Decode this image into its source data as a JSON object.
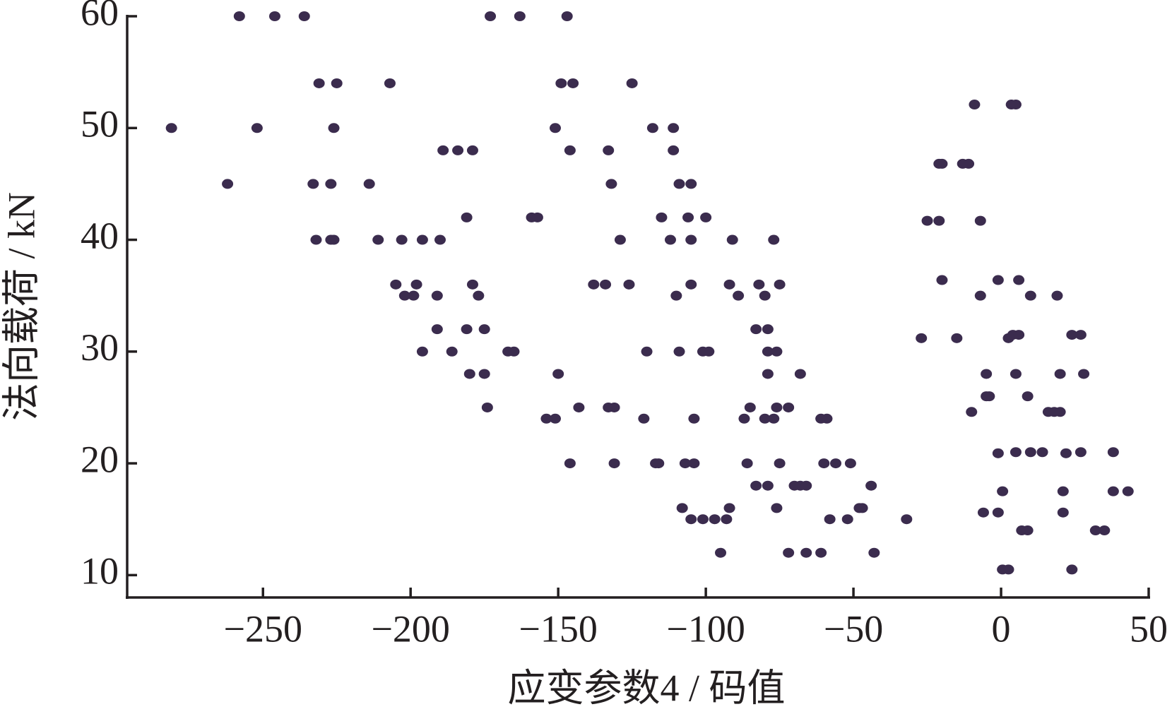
{
  "chart_data": {
    "type": "scatter",
    "x_label": "应变参数4 / 码值",
    "y_label": "法向载荷 / kN",
    "color": "#3b2c4e",
    "xlim": [
      -296,
      50
    ],
    "ylim": [
      8,
      60
    ],
    "xticks": [
      {
        "value": -250,
        "label": "−250"
      },
      {
        "value": -200,
        "label": "−200"
      },
      {
        "value": -150,
        "label": "−150"
      },
      {
        "value": -100,
        "label": "−100"
      },
      {
        "value": -50,
        "label": "−50"
      },
      0,
      50
    ],
    "yticks": [
      10,
      20,
      30,
      40,
      50,
      60
    ],
    "x": [
      -281,
      -262,
      -258,
      -252,
      -246,
      -236,
      -233,
      -232,
      -231,
      -227,
      -227,
      -226,
      -226,
      -225,
      -214,
      -211,
      -207,
      -205,
      -203,
      -202,
      -199,
      -198,
      -196,
      -196,
      -191,
      -191,
      -190,
      -189,
      -186,
      -184,
      -181,
      -181,
      -180,
      -179,
      -179,
      -177,
      -175,
      -175,
      -174,
      -173,
      -167,
      -165,
      -163,
      -159,
      -157,
      -154,
      -151,
      -151,
      -150,
      -149,
      -147,
      -146,
      -146,
      -145,
      -143,
      -138,
      -134,
      -133,
      -133,
      -132,
      -131,
      -131,
      -129,
      -126,
      -125,
      -121,
      -120,
      -118,
      -117,
      -116,
      -115,
      -112,
      -111,
      -111,
      -110,
      -109,
      -109,
      -108,
      -107,
      -106,
      -105,
      -105,
      -105,
      -105,
      -104,
      -104,
      -101,
      -101,
      -100,
      -99,
      -97,
      -95,
      -93,
      -92,
      -92,
      -91,
      -89,
      -87,
      -86,
      -85,
      -83,
      -83,
      -82,
      -80,
      -80,
      -79,
      -79,
      -79,
      -79,
      -77,
      -77,
      -76,
      -76,
      -76,
      -75,
      -75,
      -72,
      -72,
      -70,
      -68,
      -68,
      -66,
      -66,
      -61,
      -61,
      -60,
      -59,
      -58,
      -56,
      -52,
      -51,
      -48,
      -47,
      -44,
      -43,
      -32,
      -27,
      -25,
      -21,
      -21,
      -20,
      -20,
      -15,
      -13,
      -11,
      -10,
      -9,
      -7,
      -7,
      -6,
      -5,
      -5,
      -4,
      -1,
      -1,
      -1,
      0.5,
      0.5,
      2.5,
      2.5,
      3.5,
      4,
      5,
      5,
      5,
      6,
      6,
      7,
      9,
      9,
      10,
      10,
      14,
      16,
      18,
      19,
      20,
      20,
      21,
      21,
      22,
      24,
      24,
      27,
      27,
      28,
      32,
      35,
      38,
      38,
      43
    ],
    "values": [
      50,
      45,
      60,
      50,
      60,
      60,
      45,
      40,
      54,
      45,
      40,
      40,
      50,
      54,
      45,
      40,
      54,
      36,
      40,
      35,
      35,
      36,
      40,
      30,
      35,
      32,
      40,
      48,
      30,
      48,
      42,
      32,
      28,
      48,
      36,
      35,
      32,
      28,
      25,
      60,
      30,
      30,
      60,
      42,
      42,
      24,
      24,
      50,
      28,
      54,
      60,
      48,
      20,
      54,
      25,
      36,
      36,
      48,
      25,
      45,
      25,
      20,
      40,
      36,
      54,
      24,
      30,
      50,
      20,
      20,
      42,
      40,
      48,
      50,
      35,
      30,
      45,
      16,
      20,
      42,
      45,
      36,
      40,
      15,
      24,
      20,
      15,
      30,
      42,
      30,
      15,
      12,
      15,
      16,
      36,
      40,
      35,
      24,
      20,
      25,
      18,
      32,
      36,
      35,
      24,
      18,
      32,
      28,
      30,
      40,
      24,
      30,
      25,
      16,
      20,
      36,
      25,
      12,
      18,
      28,
      18,
      18,
      12,
      12,
      24,
      20,
      24,
      15,
      20,
      15,
      20,
      16,
      16,
      18,
      12,
      15,
      31.2,
      41.7,
      41.7,
      46.8,
      36.4,
      46.8,
      31.2,
      46.8,
      46.8,
      24.6,
      52.1,
      41.7,
      35,
      15.6,
      28,
      26,
      26,
      36.4,
      20.9,
      15.6,
      17.5,
      10.5,
      10.5,
      31.2,
      52.1,
      31.5,
      52.1,
      28,
      21,
      36.4,
      31.5,
      14,
      14,
      26,
      21,
      35,
      21,
      24.6,
      24.6,
      35,
      24.6,
      28,
      17.5,
      15.6,
      20.9,
      10.5,
      31.5,
      31.5,
      21,
      28,
      14,
      14,
      21,
      17.5,
      17.5
    ]
  }
}
